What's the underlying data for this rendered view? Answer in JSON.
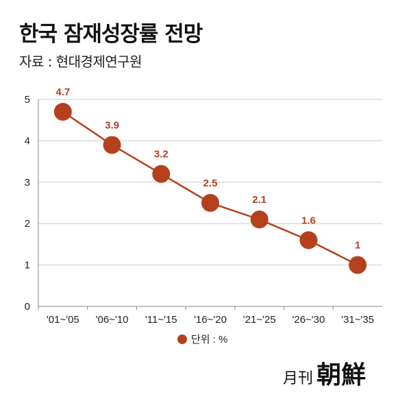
{
  "header": {
    "title": "한국 잠재성장률 전망",
    "source": "자료 : 현대경제연구원"
  },
  "logo": {
    "small": "月刊",
    "big": "朝鮮"
  },
  "colors": {
    "series": "#b5401e",
    "grid": "#cccccc",
    "axis": "#888888"
  },
  "chart_data": {
    "type": "line",
    "title": "한국 잠재성장률 전망",
    "categories": [
      "'01~'05",
      "'06~'10",
      "'11~'15",
      "'16~'20",
      "'21~'25",
      "'26~'30",
      "'31~'35"
    ],
    "series": [
      {
        "name": "단위 : %",
        "values": [
          4.7,
          3.9,
          3.2,
          2.5,
          2.1,
          1.6,
          1
        ]
      }
    ],
    "data_labels": [
      "4.7",
      "3.9",
      "3.2",
      "2.5",
      "2.1",
      "1.6",
      "1"
    ],
    "yticks": [
      "0",
      "1",
      "2",
      "3",
      "4",
      "5"
    ],
    "ylim": [
      0,
      5
    ],
    "grid": true,
    "legend_position": "bottom",
    "xlabel": "",
    "ylabel": ""
  }
}
